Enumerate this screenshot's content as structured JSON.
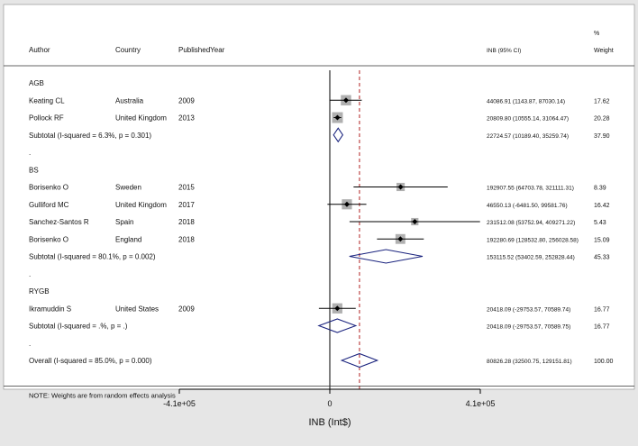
{
  "chart_data": {
    "type": "forest",
    "title": "",
    "xlabel": "INB (Int$)",
    "columns": {
      "author": "Author",
      "country": "Country",
      "year": "PublishedYear",
      "ci": "INB (95% CI)",
      "weight_top": "%",
      "weight": "Weight"
    },
    "xticks": [
      {
        "value": -410000,
        "label": "-4.1e+05"
      },
      {
        "value": 0,
        "label": "0"
      },
      {
        "value": 410000,
        "label": "4.1e+05"
      }
    ],
    "overall_line": 80826.28,
    "rows": [
      {
        "kind": "group",
        "label": "AGB"
      },
      {
        "kind": "study",
        "author": "Keating CL",
        "country": "Australia",
        "year": "2009",
        "est": 44086.91,
        "lo": 1143.87,
        "hi": 87030.14,
        "ci_text": "44086.91 (1143.87, 87030.14)",
        "weight": "17.62"
      },
      {
        "kind": "study",
        "author": "Pollock RF",
        "country": "United Kingdom",
        "year": "2013",
        "est": 20809.8,
        "lo": 10555.14,
        "hi": 31064.47,
        "ci_text": "20809.80 (10555.14, 31064.47)",
        "weight": "20.28"
      },
      {
        "kind": "subtotal",
        "label": "Subtotal  (I-squared = 6.3%, p = 0.301)",
        "est": 22724.57,
        "lo": 10189.4,
        "hi": 35259.74,
        "ci_text": "22724.57 (10189.40, 35259.74)",
        "weight": "37.90"
      },
      {
        "kind": "blank",
        "label": "."
      },
      {
        "kind": "group",
        "label": "BS"
      },
      {
        "kind": "study",
        "author": "Borisenko O",
        "country": "Sweden",
        "year": "2015",
        "est": 192907.55,
        "lo": 64703.78,
        "hi": 321111.31,
        "ci_text": "192907.55 (64703.78, 321111.31)",
        "weight": "8.39"
      },
      {
        "kind": "study",
        "author": "Gulliford MC",
        "country": "United Kingdom",
        "year": "2017",
        "est": 46550.13,
        "lo": -6481.5,
        "hi": 99581.76,
        "ci_text": "46550.13 (-6481.50, 99581.76)",
        "weight": "16.42"
      },
      {
        "kind": "study",
        "author": "Sanchez-Santos R",
        "country": "Spain",
        "year": "2018",
        "est": 231512.08,
        "lo": 53752.94,
        "hi": 409271.22,
        "ci_text": "231512.08 (53752.94, 409271.22)",
        "weight": "5.43"
      },
      {
        "kind": "study",
        "author": "Borisenko O",
        "country": "England",
        "year": "2018",
        "est": 192280.69,
        "lo": 128532.8,
        "hi": 256028.58,
        "ci_text": "192280.69 (128532.80, 256028.58)",
        "weight": "15.09"
      },
      {
        "kind": "subtotal",
        "label": "Subtotal  (I-squared = 80.1%, p = 0.002)",
        "est": 153115.52,
        "lo": 53402.59,
        "hi": 252828.44,
        "ci_text": "153115.52 (53402.59, 252828.44)",
        "weight": "45.33"
      },
      {
        "kind": "blank",
        "label": "."
      },
      {
        "kind": "group",
        "label": "RYGB"
      },
      {
        "kind": "study",
        "author": "Ikramuddin S",
        "country": "United States",
        "year": "2009",
        "est": 20418.09,
        "lo": -29753.57,
        "hi": 70589.74,
        "ci_text": "20418.09 (-29753.57, 70589.74)",
        "weight": "16.77"
      },
      {
        "kind": "subtotal",
        "label": "Subtotal  (I-squared = .%, p = .)",
        "est": 20418.09,
        "lo": -29753.57,
        "hi": 70589.75,
        "ci_text": "20418.09 (-29753.57, 70589.75)",
        "weight": "16.77"
      },
      {
        "kind": "blank",
        "label": "."
      },
      {
        "kind": "overall",
        "label": "Overall  (I-squared = 85.0%, p = 0.000)",
        "est": 80826.28,
        "lo": 32500.75,
        "hi": 129151.81,
        "ci_text": "80826.28 (32500.75, 129151.81)",
        "weight": "100.00"
      },
      {
        "kind": "blank",
        "label": ""
      },
      {
        "kind": "note",
        "label": "NOTE: Weights are from random effects analysis"
      }
    ],
    "colors": {
      "background": "#e6e6e6",
      "panel": "#ffffff",
      "diamond": "#1a237e",
      "overall_line": "#b22222",
      "box": "#b0b0b0"
    }
  }
}
